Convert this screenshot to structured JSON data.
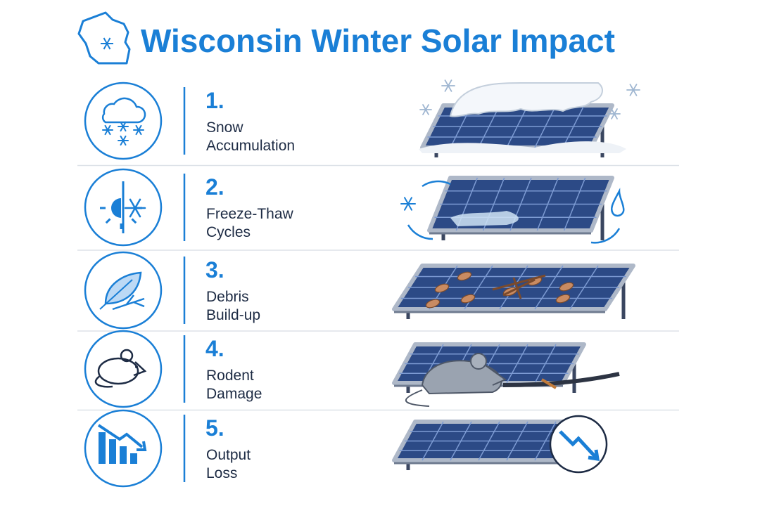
{
  "header": {
    "title": "Wisconsin Winter Solar Impact"
  },
  "items": [
    {
      "number": "1.",
      "label_lines": [
        "Snow",
        "Accumulation"
      ]
    },
    {
      "number": "2.",
      "label_lines": [
        "Freeze-Thaw",
        "Cycles"
      ]
    },
    {
      "number": "3.",
      "label_lines": [
        "Debris",
        "Build-up"
      ]
    },
    {
      "number": "4.",
      "label_lines": [
        "Rodent",
        "Damage"
      ]
    },
    {
      "number": "5.",
      "label_lines": [
        "Output",
        "Loss"
      ]
    }
  ]
}
